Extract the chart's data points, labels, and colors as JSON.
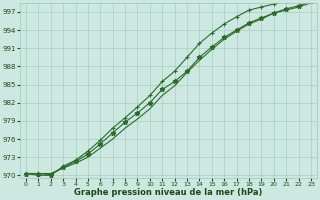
{
  "x": [
    0,
    1,
    2,
    3,
    4,
    5,
    6,
    7,
    8,
    9,
    10,
    11,
    12,
    13,
    14,
    15,
    16,
    17,
    18,
    19,
    20,
    21,
    22,
    23
  ],
  "line1": [
    970.3,
    970.3,
    970.1,
    971.3,
    972.3,
    973.5,
    975.2,
    977.0,
    978.8,
    980.3,
    982.0,
    984.2,
    985.5,
    987.2,
    989.5,
    991.2,
    992.8,
    994.0,
    995.2,
    996.0,
    996.8,
    997.5,
    998.0,
    998.8
  ],
  "line2": [
    970.3,
    970.3,
    970.3,
    971.2,
    972.0,
    973.0,
    974.5,
    976.0,
    977.8,
    979.3,
    981.0,
    983.2,
    984.8,
    987.0,
    989.0,
    990.8,
    992.5,
    993.8,
    995.0,
    995.8,
    996.8,
    997.3,
    997.8,
    998.5
  ],
  "line3": [
    970.3,
    970.0,
    970.0,
    971.5,
    972.5,
    974.0,
    975.8,
    977.8,
    979.5,
    981.3,
    983.2,
    985.5,
    987.2,
    989.5,
    991.8,
    993.5,
    995.0,
    996.2,
    997.3,
    997.8,
    998.3,
    998.8,
    999.0,
    999.3
  ],
  "ylim": [
    969.5,
    998.5
  ],
  "xlim": [
    -0.5,
    23.5
  ],
  "yticks": [
    970,
    973,
    976,
    979,
    982,
    985,
    988,
    991,
    994,
    997
  ],
  "xticks": [
    0,
    1,
    2,
    3,
    4,
    5,
    6,
    7,
    8,
    9,
    10,
    11,
    12,
    13,
    14,
    15,
    16,
    17,
    18,
    19,
    20,
    21,
    22,
    23
  ],
  "line_color": "#2d6a2d",
  "bg_color": "#cce8e0",
  "grid_color": "#9ec8b8",
  "xlabel": "Graphe pression niveau de la mer (hPa)",
  "xlabel_color": "#1a4a1a",
  "tick_color": "#1a4a1a"
}
